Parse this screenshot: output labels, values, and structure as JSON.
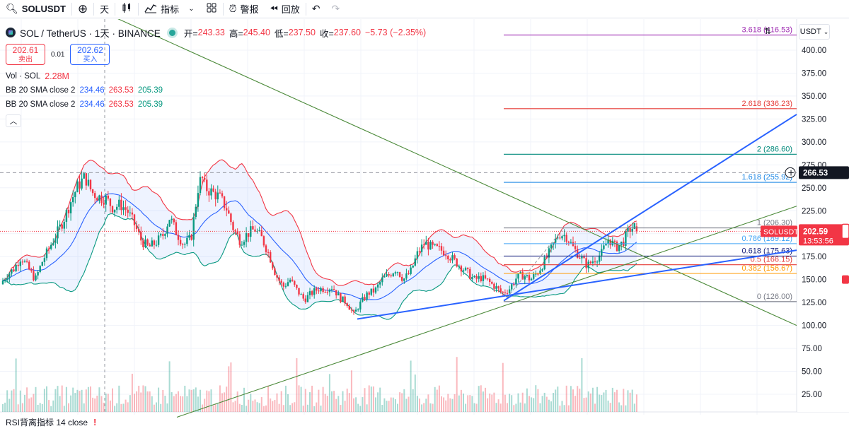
{
  "toolbar": {
    "symbol": "SOLUSDT",
    "interval": "天",
    "indicators_label": "指标",
    "alert_label": "警报",
    "replay_label": "回放"
  },
  "legend": {
    "pair_title": "SOL / TetherUS · 1天 · BINANCE",
    "open_label": "开=",
    "open": "243.33",
    "high_label": "高=",
    "high": "245.40",
    "low_label": "低=",
    "low": "237.50",
    "close_label": "收=",
    "close": "237.60",
    "change": "−5.73 (−2.35%)"
  },
  "quotes": {
    "sell_price": "202.61",
    "sell_label": "卖出",
    "spread": "0.01",
    "buy_price": "202.62",
    "buy_label": "买入"
  },
  "indicators": [
    {
      "name": "Vol · SOL",
      "values": [
        "2.28M"
      ]
    },
    {
      "name": "BB 20 SMA close 2",
      "values": [
        "234.46",
        "263.53",
        "205.39"
      ]
    },
    {
      "name": "BB 20 SMA close 2",
      "values": [
        "234.46",
        "263.53",
        "205.39"
      ]
    }
  ],
  "rsi": {
    "label": "RSI背离指标 14 close",
    "warning": "!"
  },
  "axis": {
    "currency": "USDT",
    "ticks": [
      "400.00",
      "375.00",
      "350.00",
      "325.00",
      "300.00",
      "275.00",
      "250.00",
      "225.00",
      "200.00",
      "175.00",
      "150.00",
      "125.00",
      "100.00",
      "75.00",
      "50.00",
      "25.00"
    ],
    "current_price_tag": "202.59",
    "countdown": "13:53:56",
    "symbol_tag": "SOLUSDT",
    "crosshair_price": "266.53"
  },
  "colors": {
    "up": "#089981",
    "down": "#f23645",
    "bb_upper": "#f23645",
    "bb_lower": "#089981",
    "bb_mid": "#2962ff",
    "trend_blue": "#2962ff",
    "trend_green": "#4c8a3a"
  },
  "chart_data": {
    "type": "candlestick",
    "title": "SOL / TetherUS · 1天 · BINANCE",
    "ylim": [
      0,
      420
    ],
    "fib_levels": [
      {
        "ratio": "3.618",
        "price": 416.53,
        "label": "3.618 (416.53)",
        "color": "#9c27b0"
      },
      {
        "ratio": "2.618",
        "price": 336.23,
        "label": "2.618 (336.23)",
        "color": "#e53935"
      },
      {
        "ratio": "2",
        "price": 286.6,
        "label": "2 (286.60)",
        "color": "#00897b"
      },
      {
        "ratio": "1.618",
        "price": 255.92,
        "label": "1.618 (255.92)",
        "color": "#1e88e5"
      },
      {
        "ratio": "1",
        "price": 206.3,
        "label": "1 (206.30)",
        "color": "#787b86"
      },
      {
        "ratio": "0.786",
        "price": 189.12,
        "label": "0.786 (189.12)",
        "color": "#42a5f5"
      },
      {
        "ratio": "0.618",
        "price": 175.63,
        "label": "0.618 (175.63)",
        "color": "#1a237e"
      },
      {
        "ratio": "0.5",
        "price": 166.15,
        "label": "0.5 (166.15)",
        "color": "#e53935"
      },
      {
        "ratio": "0.382",
        "price": 156.67,
        "label": "0.382 (156.67)",
        "color": "#ff9800"
      },
      {
        "ratio": "0",
        "price": 126.0,
        "label": "0 (126.00)",
        "color": "#787b86"
      }
    ],
    "price_anchors": [
      [
        0,
        145
      ],
      [
        10,
        155
      ],
      [
        20,
        162
      ],
      [
        30,
        175
      ],
      [
        40,
        162
      ],
      [
        50,
        150
      ],
      [
        60,
        170
      ],
      [
        70,
        185
      ],
      [
        80,
        200
      ],
      [
        90,
        215
      ],
      [
        100,
        235
      ],
      [
        110,
        252
      ],
      [
        120,
        262
      ],
      [
        130,
        245
      ],
      [
        140,
        240
      ],
      [
        150,
        238
      ],
      [
        160,
        228
      ],
      [
        170,
        232
      ],
      [
        180,
        225
      ],
      [
        190,
        210
      ],
      [
        200,
        192
      ],
      [
        210,
        185
      ],
      [
        220,
        190
      ],
      [
        230,
        198
      ],
      [
        240,
        218
      ],
      [
        250,
        200
      ],
      [
        260,
        188
      ],
      [
        270,
        195
      ],
      [
        280,
        250
      ],
      [
        285,
        262
      ],
      [
        290,
        250
      ],
      [
        300,
        245
      ],
      [
        310,
        240
      ],
      [
        320,
        228
      ],
      [
        330,
        205
      ],
      [
        340,
        192
      ],
      [
        350,
        200
      ],
      [
        360,
        205
      ],
      [
        370,
        195
      ],
      [
        380,
        178
      ],
      [
        390,
        155
      ],
      [
        400,
        142
      ],
      [
        410,
        150
      ],
      [
        420,
        138
      ],
      [
        430,
        128
      ],
      [
        440,
        135
      ],
      [
        450,
        140
      ],
      [
        460,
        140
      ],
      [
        470,
        142
      ],
      [
        480,
        130
      ],
      [
        490,
        125
      ],
      [
        500,
        112
      ],
      [
        510,
        125
      ],
      [
        520,
        135
      ],
      [
        530,
        138
      ],
      [
        540,
        150
      ],
      [
        550,
        155
      ],
      [
        560,
        162
      ],
      [
        570,
        150
      ],
      [
        580,
        158
      ],
      [
        590,
        178
      ],
      [
        600,
        190
      ],
      [
        610,
        185
      ],
      [
        620,
        183
      ],
      [
        630,
        180
      ],
      [
        640,
        172
      ],
      [
        650,
        165
      ],
      [
        660,
        158
      ],
      [
        670,
        150
      ],
      [
        680,
        152
      ],
      [
        690,
        148
      ],
      [
        700,
        142
      ],
      [
        710,
        135
      ],
      [
        720,
        140
      ],
      [
        730,
        152
      ],
      [
        740,
        155
      ],
      [
        750,
        150
      ],
      [
        760,
        158
      ],
      [
        770,
        170
      ],
      [
        780,
        185
      ],
      [
        790,
        200
      ],
      [
        800,
        198
      ],
      [
        810,
        185
      ],
      [
        820,
        175
      ],
      [
        830,
        165
      ],
      [
        840,
        172
      ],
      [
        850,
        178
      ],
      [
        860,
        195
      ],
      [
        870,
        185
      ],
      [
        880,
        190
      ],
      [
        890,
        205
      ],
      [
        900,
        208
      ],
      [
        905,
        202
      ]
    ],
    "trendlines": [
      {
        "color": "#4c8a3a",
        "from": [
          150,
          440
        ],
        "to": [
          1126,
          100
        ]
      },
      {
        "color": "#4c8a3a",
        "from": [
          250,
          0
        ],
        "to": [
          1126,
          230
        ]
      },
      {
        "color": "#2962ff",
        "from": [
          505,
          107
        ],
        "to": [
          1126,
          182
        ]
      },
      {
        "color": "#2962ff",
        "from": [
          712,
          127
        ],
        "to": [
          1126,
          330
        ]
      }
    ],
    "horizontal_lines": [
      {
        "price": 266.53,
        "style": "dashed",
        "color": "#9598a1"
      },
      {
        "price": 202.59,
        "style": "dotted",
        "color": "#f23645"
      }
    ]
  }
}
